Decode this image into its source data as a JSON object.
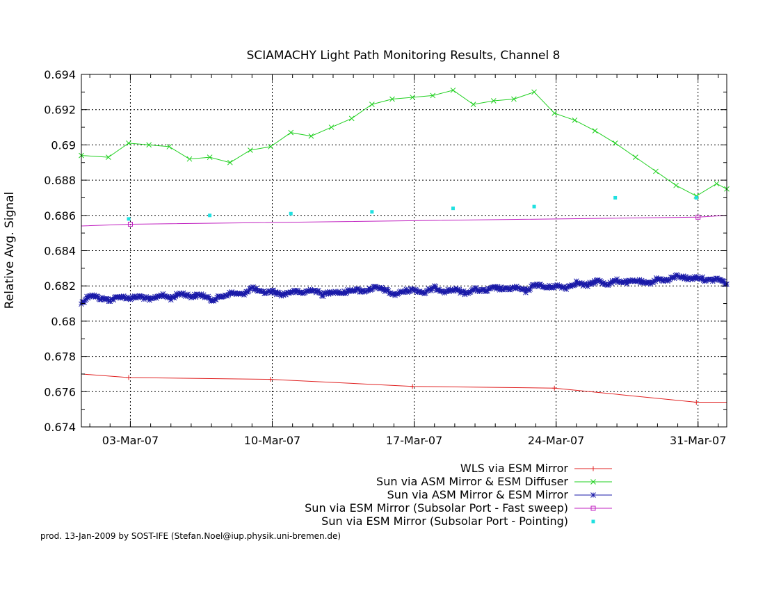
{
  "chart_data": {
    "type": "line",
    "title": "SCIAMACHY Light Path Monitoring Results, Channel 8",
    "xlabel": "",
    "ylabel": "Relative Avg. Signal",
    "x_axis_kind": "date",
    "xlim": [
      "2007-02-28T14:00",
      "2007-04-01T10:00"
    ],
    "ylim": [
      0.674,
      0.694
    ],
    "grid": true,
    "legend_position": "below",
    "x_ticks": [
      {
        "date": "2007-03-03",
        "label": "03-Mar-07"
      },
      {
        "date": "2007-03-10",
        "label": "10-Mar-07"
      },
      {
        "date": "2007-03-17",
        "label": "17-Mar-07"
      },
      {
        "date": "2007-03-24",
        "label": "24-Mar-07"
      },
      {
        "date": "2007-03-31",
        "label": "31-Mar-07"
      }
    ],
    "y_ticks": [
      {
        "value": 0.674,
        "label": "0.674"
      },
      {
        "value": 0.676,
        "label": "0.676"
      },
      {
        "value": 0.678,
        "label": "0.678"
      },
      {
        "value": 0.68,
        "label": "0.68"
      },
      {
        "value": 0.682,
        "label": "0.682"
      },
      {
        "value": 0.684,
        "label": "0.684"
      },
      {
        "value": 0.686,
        "label": "0.686"
      },
      {
        "value": 0.688,
        "label": "0.688"
      },
      {
        "value": 0.69,
        "label": "0.69"
      },
      {
        "value": 0.692,
        "label": "0.692"
      },
      {
        "value": 0.694,
        "label": "0.694"
      }
    ],
    "series": [
      {
        "name": "WLS via ESM Mirror",
        "color": "#e02020",
        "marker": "plus",
        "style": "linespoints",
        "points": [
          [
            "2007-02-28T14:00",
            0.677
          ],
          [
            "2007-03-02T22:00",
            0.6768
          ],
          [
            "2007-03-09T22:00",
            0.6767
          ],
          [
            "2007-03-16T22:00",
            0.6763
          ],
          [
            "2007-03-23T22:00",
            0.6762
          ],
          [
            "2007-03-30T22:00",
            0.6754
          ],
          [
            "2007-04-01T10:00",
            0.6754
          ]
        ]
      },
      {
        "name": "Sun via ASM Mirror & ESM Diffuser",
        "color": "#20d020",
        "marker": "cross",
        "style": "linespoints",
        "points": [
          [
            "2007-02-28T14:00",
            0.6894
          ],
          [
            "2007-03-01T22:00",
            0.6893
          ],
          [
            "2007-03-02T22:00",
            0.6901
          ],
          [
            "2007-03-03T22:00",
            0.69
          ],
          [
            "2007-03-04T22:00",
            0.6899
          ],
          [
            "2007-03-05T22:00",
            0.6892
          ],
          [
            "2007-03-06T22:00",
            0.6893
          ],
          [
            "2007-03-07T22:00",
            0.689
          ],
          [
            "2007-03-08T22:00",
            0.6897
          ],
          [
            "2007-03-09T22:00",
            0.6899
          ],
          [
            "2007-03-10T22:00",
            0.6907
          ],
          [
            "2007-03-11T22:00",
            0.6905
          ],
          [
            "2007-03-12T22:00",
            0.691
          ],
          [
            "2007-03-13T22:00",
            0.6915
          ],
          [
            "2007-03-14T22:00",
            0.6923
          ],
          [
            "2007-03-15T22:00",
            0.6926
          ],
          [
            "2007-03-16T22:00",
            0.6927
          ],
          [
            "2007-03-17T22:00",
            0.6928
          ],
          [
            "2007-03-18T22:00",
            0.6931
          ],
          [
            "2007-03-19T22:00",
            0.6923
          ],
          [
            "2007-03-20T22:00",
            0.6925
          ],
          [
            "2007-03-21T22:00",
            0.6926
          ],
          [
            "2007-03-22T22:00",
            0.693
          ],
          [
            "2007-03-23T22:00",
            0.6918
          ],
          [
            "2007-03-24T22:00",
            0.6914
          ],
          [
            "2007-03-25T22:00",
            0.6908
          ],
          [
            "2007-03-26T22:00",
            0.6901
          ],
          [
            "2007-03-27T22:00",
            0.6893
          ],
          [
            "2007-03-28T22:00",
            0.6885
          ],
          [
            "2007-03-29T22:00",
            0.6877
          ],
          [
            "2007-03-30T22:00",
            0.6871
          ],
          [
            "2007-03-31T22:00",
            0.6878
          ],
          [
            "2007-04-01T10:00",
            0.6875
          ]
        ]
      },
      {
        "name": "Sun via ASM Mirror & ESM Mirror",
        "color": "#1a1aa8",
        "marker": "star",
        "style": "linespoints-dense",
        "points": [
          [
            "2007-02-28T14:00",
            0.681
          ],
          [
            "2007-03-01T00:00",
            0.6815
          ],
          [
            "2007-03-01T12:00",
            0.6813
          ],
          [
            "2007-03-02T00:00",
            0.6812
          ],
          [
            "2007-03-02T12:00",
            0.6814
          ],
          [
            "2007-03-03T00:00",
            0.6813
          ],
          [
            "2007-03-03T12:00",
            0.6814
          ],
          [
            "2007-03-04T00:00",
            0.6812
          ],
          [
            "2007-03-04T12:00",
            0.6815
          ],
          [
            "2007-03-05T00:00",
            0.6813
          ],
          [
            "2007-03-05T12:00",
            0.6816
          ],
          [
            "2007-03-06T00:00",
            0.6814
          ],
          [
            "2007-03-06T12:00",
            0.6815
          ],
          [
            "2007-03-07T00:00",
            0.6812
          ],
          [
            "2007-03-07T12:00",
            0.6814
          ],
          [
            "2007-03-08T00:00",
            0.6816
          ],
          [
            "2007-03-08T12:00",
            0.6815
          ],
          [
            "2007-03-09T00:00",
            0.6819
          ],
          [
            "2007-03-09T12:00",
            0.6816
          ],
          [
            "2007-03-10T00:00",
            0.6817
          ],
          [
            "2007-03-10T12:00",
            0.6815
          ],
          [
            "2007-03-11T00:00",
            0.6817
          ],
          [
            "2007-03-11T12:00",
            0.6816
          ],
          [
            "2007-03-12T00:00",
            0.6818
          ],
          [
            "2007-03-12T12:00",
            0.6815
          ],
          [
            "2007-03-13T00:00",
            0.6817
          ],
          [
            "2007-03-13T12:00",
            0.6816
          ],
          [
            "2007-03-14T00:00",
            0.6818
          ],
          [
            "2007-03-14T12:00",
            0.6817
          ],
          [
            "2007-03-15T00:00",
            0.6819
          ],
          [
            "2007-03-15T12:00",
            0.6818
          ],
          [
            "2007-03-16T00:00",
            0.6815
          ],
          [
            "2007-03-16T12:00",
            0.6817
          ],
          [
            "2007-03-17T00:00",
            0.6818
          ],
          [
            "2007-03-17T12:00",
            0.6816
          ],
          [
            "2007-03-18T00:00",
            0.6819
          ],
          [
            "2007-03-18T12:00",
            0.6817
          ],
          [
            "2007-03-19T00:00",
            0.6818
          ],
          [
            "2007-03-19T12:00",
            0.6816
          ],
          [
            "2007-03-20T00:00",
            0.6818
          ],
          [
            "2007-03-20T12:00",
            0.6817
          ],
          [
            "2007-03-21T00:00",
            0.6819
          ],
          [
            "2007-03-21T12:00",
            0.6818
          ],
          [
            "2007-03-22T00:00",
            0.6819
          ],
          [
            "2007-03-22T12:00",
            0.6817
          ],
          [
            "2007-03-23T00:00",
            0.6821
          ],
          [
            "2007-03-23T12:00",
            0.6819
          ],
          [
            "2007-03-24T00:00",
            0.682
          ],
          [
            "2007-03-24T12:00",
            0.6819
          ],
          [
            "2007-03-25T00:00",
            0.6822
          ],
          [
            "2007-03-25T12:00",
            0.682
          ],
          [
            "2007-03-26T00:00",
            0.6823
          ],
          [
            "2007-03-26T12:00",
            0.6821
          ],
          [
            "2007-03-27T00:00",
            0.6823
          ],
          [
            "2007-03-27T12:00",
            0.6822
          ],
          [
            "2007-03-28T00:00",
            0.6823
          ],
          [
            "2007-03-28T12:00",
            0.6821
          ],
          [
            "2007-03-29T00:00",
            0.6824
          ],
          [
            "2007-03-29T12:00",
            0.6823
          ],
          [
            "2007-03-30T00:00",
            0.6826
          ],
          [
            "2007-03-30T12:00",
            0.6824
          ],
          [
            "2007-03-31T00:00",
            0.6825
          ],
          [
            "2007-03-31T12:00",
            0.6823
          ],
          [
            "2007-04-01T00:00",
            0.6824
          ],
          [
            "2007-04-01T10:00",
            0.6821
          ]
        ]
      },
      {
        "name": "Sun via ESM Mirror (Subsolar Port - Fast sweep)",
        "color": "#c020c0",
        "marker": "square",
        "style": "linespoints",
        "points": [
          [
            "2007-02-28T14:00",
            0.6854
          ],
          [
            "2007-03-03T00:00",
            0.6855
          ],
          [
            "2007-03-31T00:00",
            0.6859
          ],
          [
            "2007-04-01T10:00",
            0.686
          ]
        ]
      },
      {
        "name": "Sun via ESM Mirror (Subsolar Port - Pointing)",
        "color": "#20e0e0",
        "marker": "filled-square",
        "style": "points",
        "points": [
          [
            "2007-03-02T22:00",
            0.6858
          ],
          [
            "2007-03-06T22:00",
            0.686
          ],
          [
            "2007-03-10T22:00",
            0.6861
          ],
          [
            "2007-03-14T22:00",
            0.6862
          ],
          [
            "2007-03-18T22:00",
            0.6864
          ],
          [
            "2007-03-22T22:00",
            0.6865
          ],
          [
            "2007-03-26T22:00",
            0.687
          ],
          [
            "2007-03-30T22:00",
            0.687
          ]
        ]
      }
    ]
  },
  "footer": "prod. 13-Jan-2009 by SOST-IFE (Stefan.Noel@iup.physik.uni-bremen.de)"
}
